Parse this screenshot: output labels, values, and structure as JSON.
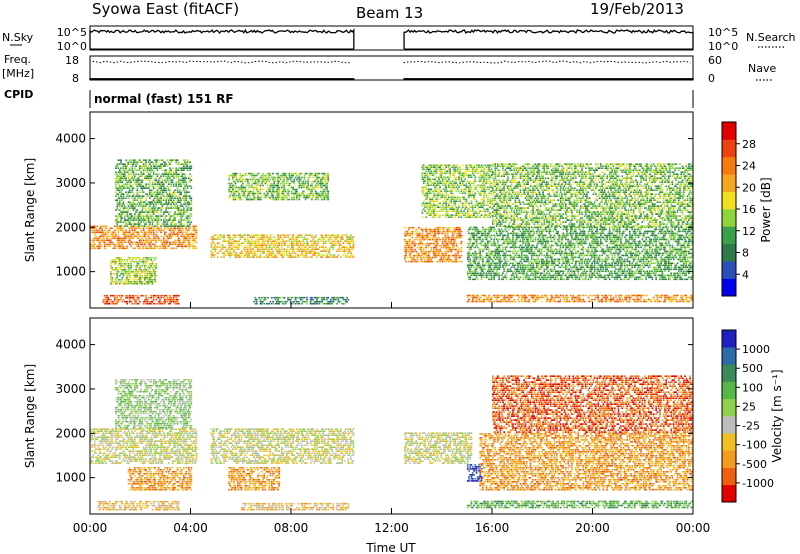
{
  "header": {
    "title": "Syowa East (fitACF)",
    "beam": "Beam 13",
    "date": "19/Feb/2013"
  },
  "colors": {
    "power_scale": [
      "#0000ee",
      "#2a4fb8",
      "#2f7a4a",
      "#3aa04a",
      "#8fd63a",
      "#f0e020",
      "#f5a623",
      "#f57a10",
      "#ee4010",
      "#e00000"
    ],
    "velocity_scale": [
      "#2020c0",
      "#2f6aa8",
      "#3a8a5a",
      "#56b848",
      "#90d050",
      "#bdbdbd",
      "#f0c020",
      "#f59a20",
      "#f06010",
      "#e00000"
    ],
    "ground_scatter": "#bdbdbd"
  },
  "chart_data": [
    {
      "type": "line",
      "name": "nsky-nsearch-panel",
      "left_label": "N.Sky",
      "right_label": "N.Search",
      "left_ticks": [
        "10^5",
        "10^0"
      ],
      "right_ticks": [
        "10^5",
        "10^0"
      ],
      "x": [
        0,
        10.5,
        12.5,
        24
      ],
      "data_gap_hours": [
        10.5,
        12.5
      ],
      "xlim": [
        0,
        24
      ]
    },
    {
      "type": "line",
      "name": "freq-nave-panel",
      "left_label": "Freq.",
      "left_unit": "[MHz]",
      "right_label": "Nave",
      "left_ticks": [
        "18",
        "8"
      ],
      "right_ticks": [
        "60",
        "0"
      ],
      "freq_mhz_level": 8.5,
      "nave_level": 45,
      "data_gap_hours": [
        10.5,
        12.5
      ],
      "xlim": [
        0,
        24
      ]
    },
    {
      "type": "table",
      "name": "cpid-row",
      "label": "CPID",
      "value": "normal (fast) 151 RF"
    },
    {
      "type": "heatmap",
      "name": "power-rti",
      "ylabel": "Slant Range [km]",
      "yticks": [
        1000,
        2000,
        3000,
        4000
      ],
      "ylim": [
        180,
        4600
      ],
      "xlim": [
        0,
        24
      ],
      "colorbar_label": "Power [dB]",
      "colorbar_ticks": [
        "28",
        "24",
        "20",
        "16",
        "12",
        "8",
        "4"
      ],
      "clim": [
        0,
        30
      ],
      "data_gap_hours": [
        10.5,
        12.5
      ],
      "blobs": [
        {
          "t": [
            0.0,
            4.2
          ],
          "r": [
            1500,
            2000
          ],
          "v": 22
        },
        {
          "t": [
            0.8,
            2.6
          ],
          "r": [
            700,
            1300
          ],
          "v": 14
        },
        {
          "t": [
            0.5,
            3.5
          ],
          "r": [
            250,
            450
          ],
          "v": 26
        },
        {
          "t": [
            1.0,
            4.0
          ],
          "r": [
            2000,
            3500
          ],
          "v": 11
        },
        {
          "t": [
            4.8,
            10.5
          ],
          "r": [
            1300,
            1800
          ],
          "v": 18
        },
        {
          "t": [
            5.5,
            9.5
          ],
          "r": [
            2600,
            3200
          ],
          "v": 12
        },
        {
          "t": [
            6.5,
            10.3
          ],
          "r": [
            250,
            420
          ],
          "v": 8
        },
        {
          "t": [
            12.5,
            14.8
          ],
          "r": [
            1200,
            2000
          ],
          "v": 22
        },
        {
          "t": [
            13.2,
            16.0
          ],
          "r": [
            2200,
            3400
          ],
          "v": 13
        },
        {
          "t": [
            15.0,
            24.0
          ],
          "r": [
            300,
            450
          ],
          "v": 22
        },
        {
          "t": [
            15.0,
            24.0
          ],
          "r": [
            800,
            2000
          ],
          "v": 10
        },
        {
          "t": [
            16.0,
            24.0
          ],
          "r": [
            2000,
            3400
          ],
          "v": 12
        }
      ]
    },
    {
      "type": "heatmap",
      "name": "velocity-rti",
      "xlabel": "Time UT",
      "ylabel": "Slant Range [km]",
      "yticks": [
        1000,
        2000,
        3000,
        4000
      ],
      "xticks": [
        "00:00",
        "04:00",
        "08:00",
        "12:00",
        "16:00",
        "20:00",
        "00:00"
      ],
      "xtick_hours": [
        0,
        4,
        8,
        12,
        16,
        20,
        24
      ],
      "ylim": [
        180,
        4600
      ],
      "xlim": [
        0,
        24
      ],
      "colorbar_label": "Velocity [m s⁻¹]",
      "colorbar_ticks": [
        "1000",
        "500",
        "100",
        "25",
        "-25",
        "-100",
        "-500",
        "-1000"
      ],
      "data_gap_hours": [
        10.5,
        12.5
      ],
      "blobs": [
        {
          "t": [
            0.0,
            4.2
          ],
          "r": [
            1300,
            2100
          ],
          "v": 5
        },
        {
          "t": [
            1.5,
            4.0
          ],
          "r": [
            700,
            1200
          ],
          "v": 7
        },
        {
          "t": [
            0.3,
            3.5
          ],
          "r": [
            250,
            450
          ],
          "v": 6
        },
        {
          "t": [
            1.0,
            4.0
          ],
          "r": [
            2100,
            3200
          ],
          "v": 4
        },
        {
          "t": [
            4.8,
            10.5
          ],
          "r": [
            1300,
            2100
          ],
          "v": 5
        },
        {
          "t": [
            5.5,
            7.5
          ],
          "r": [
            700,
            1200
          ],
          "v": 7
        },
        {
          "t": [
            6.0,
            10.3
          ],
          "r": [
            250,
            420
          ],
          "v": 6
        },
        {
          "t": [
            12.5,
            15.2
          ],
          "r": [
            1300,
            2000
          ],
          "v": 5
        },
        {
          "t": [
            15.0,
            15.6
          ],
          "r": [
            900,
            1300
          ],
          "v": 0
        },
        {
          "t": [
            15.0,
            24.0
          ],
          "r": [
            300,
            450
          ],
          "v": 3
        },
        {
          "t": [
            15.5,
            24.0
          ],
          "r": [
            700,
            2000
          ],
          "v": 7
        },
        {
          "t": [
            16.0,
            24.0
          ],
          "r": [
            2000,
            3300
          ],
          "v": 8
        }
      ]
    }
  ]
}
